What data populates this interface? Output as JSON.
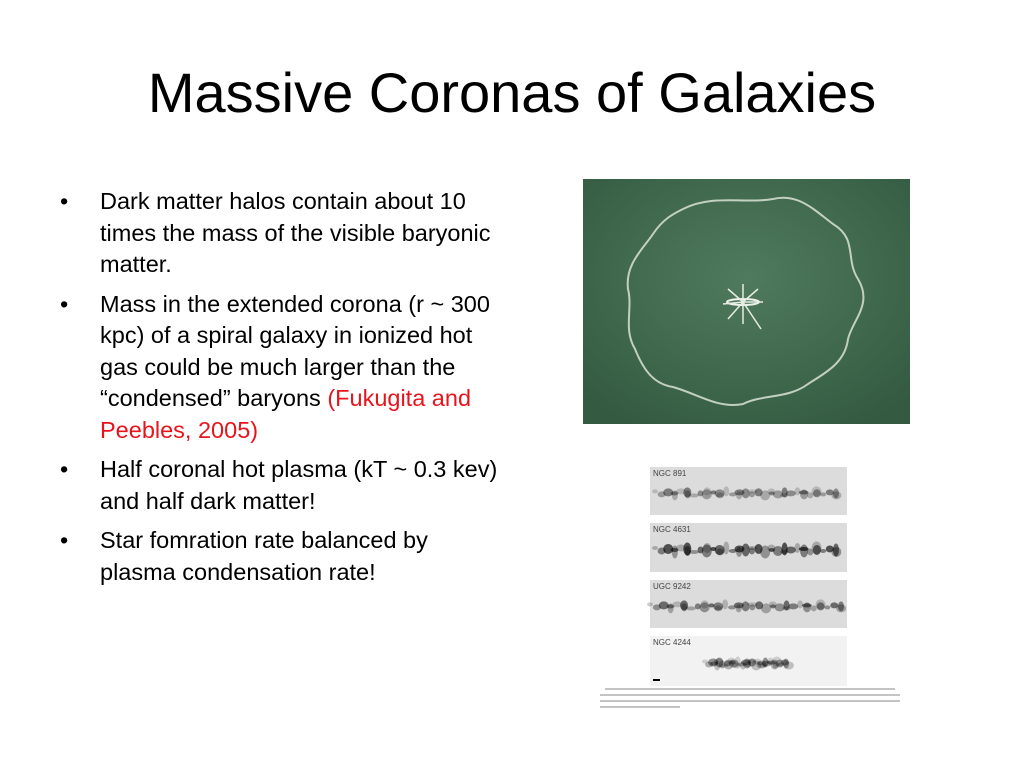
{
  "slide": {
    "title": "Massive Coronas of Galaxies",
    "bullets": [
      {
        "text": "Dark matter halos contain about 10 times the mass of the visible baryonic matter."
      },
      {
        "text": "Mass in the extended corona (r ~ 300 kpc) of a spiral galaxy in ionized hot gas could be much larger than the “condensed” baryons",
        "citation": "(Fukugita and Peebles, 2005)"
      },
      {
        "text": "Half coronal hot plasma (kT ~ 0.3 kev) and half dark matter!"
      },
      {
        "text": "Star fomration rate balanced by plasma condensation rate!"
      }
    ],
    "galaxy_labels": [
      "NGC 891",
      "NGC 4631",
      "UGC 9242",
      "NGC 4244"
    ]
  }
}
